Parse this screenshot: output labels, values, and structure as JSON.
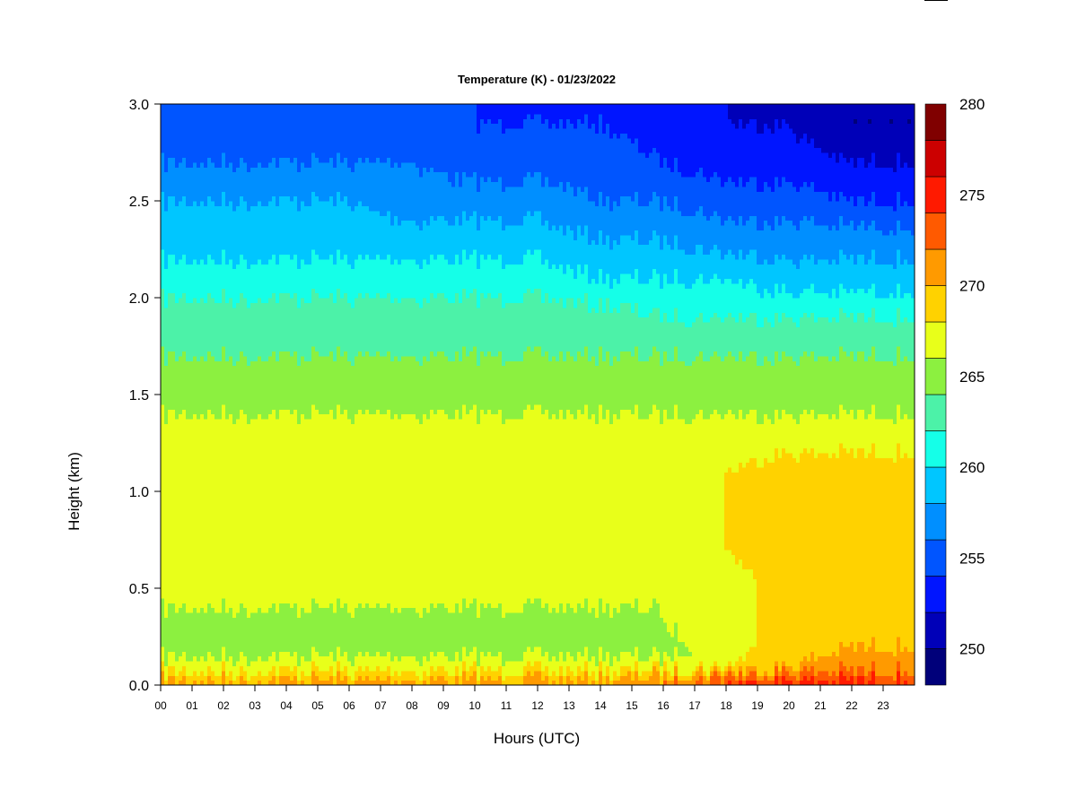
{
  "chart_data": {
    "type": "heatmap",
    "title": "Temperature (K) - 01/23/2022",
    "xlabel": "Hours (UTC)",
    "ylabel": "Height (km)",
    "xlim": [
      0,
      24
    ],
    "ylim": [
      0,
      3.0
    ],
    "x_ticks": [
      "00",
      "01",
      "02",
      "03",
      "04",
      "05",
      "06",
      "07",
      "08",
      "09",
      "10",
      "11",
      "12",
      "13",
      "14",
      "15",
      "16",
      "17",
      "18",
      "19",
      "20",
      "21",
      "22",
      "23"
    ],
    "y_ticks": [
      "0.0",
      "0.5",
      "1.0",
      "1.5",
      "2.0",
      "2.5",
      "3.0"
    ],
    "colorbar": {
      "min": 248,
      "max": 280,
      "ticks": [
        "250",
        "255",
        "260",
        "265",
        "270",
        "275",
        "280"
      ],
      "levels": [
        248,
        250,
        252,
        254,
        256,
        258,
        260,
        262,
        264,
        266,
        268,
        270,
        272,
        274,
        276,
        278,
        280
      ],
      "colors": [
        "#00007a",
        "#0000b8",
        "#0015ff",
        "#0055ff",
        "#008fff",
        "#00c6ff",
        "#15ffe8",
        "#4cf2a8",
        "#8cf040",
        "#e8ff1a",
        "#ffd200",
        "#ff9a00",
        "#ff5a00",
        "#ff1a00",
        "#cc0000",
        "#800000"
      ]
    },
    "heights_km": [
      0.0,
      0.05,
      0.1,
      0.2,
      0.3,
      0.4,
      0.5,
      0.7,
      0.9,
      1.1,
      1.3,
      1.5,
      1.7,
      1.9,
      2.1,
      2.3,
      2.5,
      2.7,
      2.9,
      3.0
    ],
    "hours": [
      0,
      2,
      4,
      6,
      8,
      10,
      12,
      14,
      16,
      18,
      20,
      22,
      24
    ],
    "temperatures_K": [
      [
        271,
        271,
        271,
        271,
        271,
        271,
        271,
        271,
        272,
        274,
        275,
        275,
        275
      ],
      [
        269,
        269,
        269,
        269,
        269,
        269,
        269,
        269,
        270,
        272,
        273,
        273,
        273
      ],
      [
        267,
        267,
        267,
        267,
        267,
        267,
        267,
        267,
        267,
        268,
        270,
        271,
        271
      ],
      [
        265,
        265,
        265,
        265,
        265,
        265,
        265,
        265,
        265,
        267,
        269,
        270,
        270
      ],
      [
        265,
        265,
        265,
        265,
        265,
        265,
        265,
        265,
        266,
        267,
        269,
        269,
        269
      ],
      [
        266,
        266,
        266,
        266,
        266,
        266,
        266,
        266,
        266,
        267,
        269,
        269,
        269
      ],
      [
        267,
        267,
        267,
        266,
        266,
        267,
        267,
        267,
        267,
        267,
        269,
        269,
        269
      ],
      [
        267,
        267,
        267,
        267,
        267,
        267,
        267,
        267,
        267,
        268,
        269,
        269,
        269
      ],
      [
        267,
        267,
        267,
        267,
        267,
        267,
        267,
        267,
        267,
        268,
        269,
        269,
        269
      ],
      [
        267,
        267,
        267,
        267,
        267,
        267,
        267,
        267,
        267,
        268,
        269,
        269,
        269
      ],
      [
        267,
        267,
        267,
        267,
        267,
        267,
        267,
        267,
        267,
        267,
        267,
        267,
        267
      ],
      [
        265,
        265,
        265,
        265,
        265,
        265,
        265,
        265,
        265,
        265,
        265,
        265,
        265
      ],
      [
        264,
        264,
        264,
        264,
        264,
        264,
        264,
        264,
        264,
        264,
        264,
        264,
        264
      ],
      [
        263,
        263,
        263,
        263,
        263,
        263,
        263,
        263,
        262,
        262,
        262,
        262,
        262
      ],
      [
        261,
        261,
        261,
        261,
        261,
        261,
        261,
        260,
        260,
        260,
        259,
        259,
        259
      ],
      [
        259,
        259,
        259,
        259,
        259,
        259,
        259,
        258,
        258,
        257,
        257,
        257,
        257
      ],
      [
        258,
        258,
        258,
        258,
        257,
        257,
        257,
        256,
        256,
        255,
        255,
        254,
        254
      ],
      [
        256,
        256,
        256,
        256,
        256,
        255,
        255,
        255,
        254,
        253,
        253,
        252,
        252
      ],
      [
        255,
        255,
        255,
        255,
        255,
        254,
        254,
        254,
        253,
        252,
        252,
        250,
        250
      ],
      [
        255,
        255,
        254,
        254,
        254,
        254,
        253,
        253,
        253,
        252,
        251,
        250,
        250
      ]
    ]
  }
}
